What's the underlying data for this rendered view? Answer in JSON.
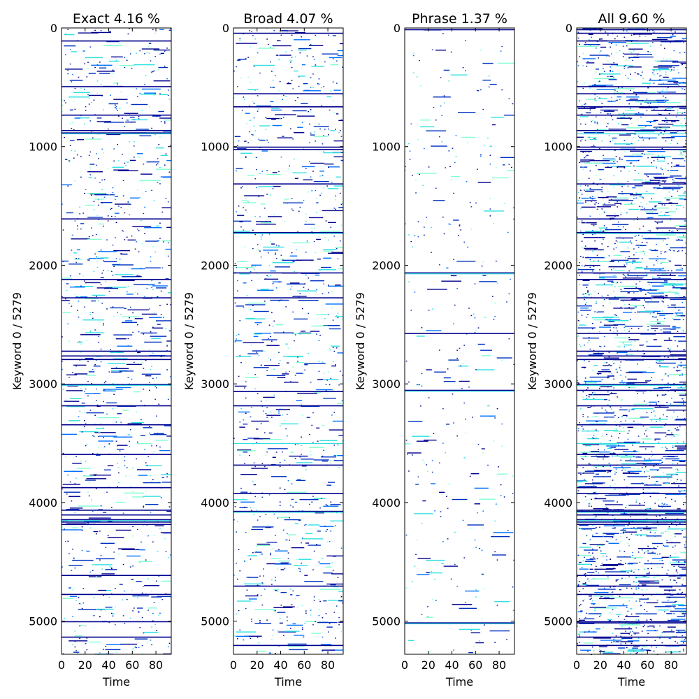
{
  "chart_data": [
    {
      "type": "heatmap",
      "title": "Exact 4.16 %",
      "xlabel": "Time",
      "ylabel": "Keyword 0 / 5279",
      "xlim": [
        0,
        93
      ],
      "ylim": [
        5279,
        0
      ],
      "x_ticks": [
        0,
        20,
        40,
        60,
        80
      ],
      "y_ticks": [
        0,
        1000,
        2000,
        3000,
        4000,
        5000
      ],
      "density_percent": 4.16,
      "full_rows": [
        105,
        490,
        730,
        860,
        880,
        1605,
        2115,
        2270,
        2720,
        2760,
        2790,
        3000,
        3180,
        3340,
        3590,
        3870,
        4060,
        4100,
        4140,
        4160,
        4180,
        4610,
        4770,
        5000,
        5130
      ],
      "cyan_rows": [
        880,
        3000,
        4140
      ]
    },
    {
      "type": "heatmap",
      "title": "Broad 4.07 %",
      "xlabel": "Time",
      "ylabel": "Keyword 0 / 5279",
      "xlim": [
        0,
        93
      ],
      "ylim": [
        5279,
        0
      ],
      "x_ticks": [
        0,
        20,
        40,
        60,
        80
      ],
      "y_ticks": [
        0,
        1000,
        2000,
        3000,
        4000,
        5000
      ],
      "density_percent": 4.07,
      "full_rows": [
        40,
        550,
        660,
        1000,
        1020,
        1310,
        1720,
        2060,
        2270,
        3060,
        3180,
        3680,
        3920,
        4070,
        4700,
        5200
      ],
      "cyan_rows": [
        1720,
        3490,
        4070
      ]
    },
    {
      "type": "heatmap",
      "title": "Phrase 1.37 %",
      "xlabel": "Time",
      "ylabel": "Keyword 0 / 5279",
      "xlim": [
        0,
        93
      ],
      "ylim": [
        5279,
        0
      ],
      "x_ticks": [
        0,
        20,
        40,
        60,
        80
      ],
      "y_ticks": [
        0,
        1000,
        2000,
        3000,
        4000,
        5000
      ],
      "density_percent": 1.37,
      "full_rows": [
        10,
        2060,
        2570,
        3050,
        5010
      ],
      "cyan_rows": [
        2060,
        3050,
        5010
      ]
    },
    {
      "type": "heatmap",
      "title": "All 9.60 %",
      "xlabel": "Time",
      "ylabel": "Keyword 0 / 5279",
      "xlim": [
        0,
        93
      ],
      "ylim": [
        5279,
        0
      ],
      "x_ticks": [
        0,
        20,
        40,
        60,
        80
      ],
      "y_ticks": [
        0,
        1000,
        2000,
        3000,
        4000,
        5000
      ],
      "density_percent": 9.6,
      "full_rows": [
        10,
        40,
        105,
        490,
        550,
        660,
        730,
        860,
        1000,
        1020,
        1310,
        1605,
        1720,
        2060,
        2115,
        2270,
        2570,
        2720,
        2760,
        2790,
        3000,
        3050,
        3180,
        3340,
        3590,
        3680,
        3870,
        3920,
        4060,
        4070,
        4100,
        4140,
        4160,
        4180,
        4610,
        4700,
        4770,
        5000,
        5010,
        5130,
        5200
      ],
      "cyan_rows": [
        880,
        1720,
        3000,
        3490,
        4070,
        4140
      ]
    }
  ],
  "colors": {
    "background": "#ffffff",
    "frame": "#000000",
    "cell_dark": "#00008f",
    "cell_blue": "#0030c0",
    "cell_mid": "#0070ff",
    "cell_cyan": "#30e0e0",
    "cell_light": "#80ffd0",
    "cell_yellow": "#ffd000"
  }
}
